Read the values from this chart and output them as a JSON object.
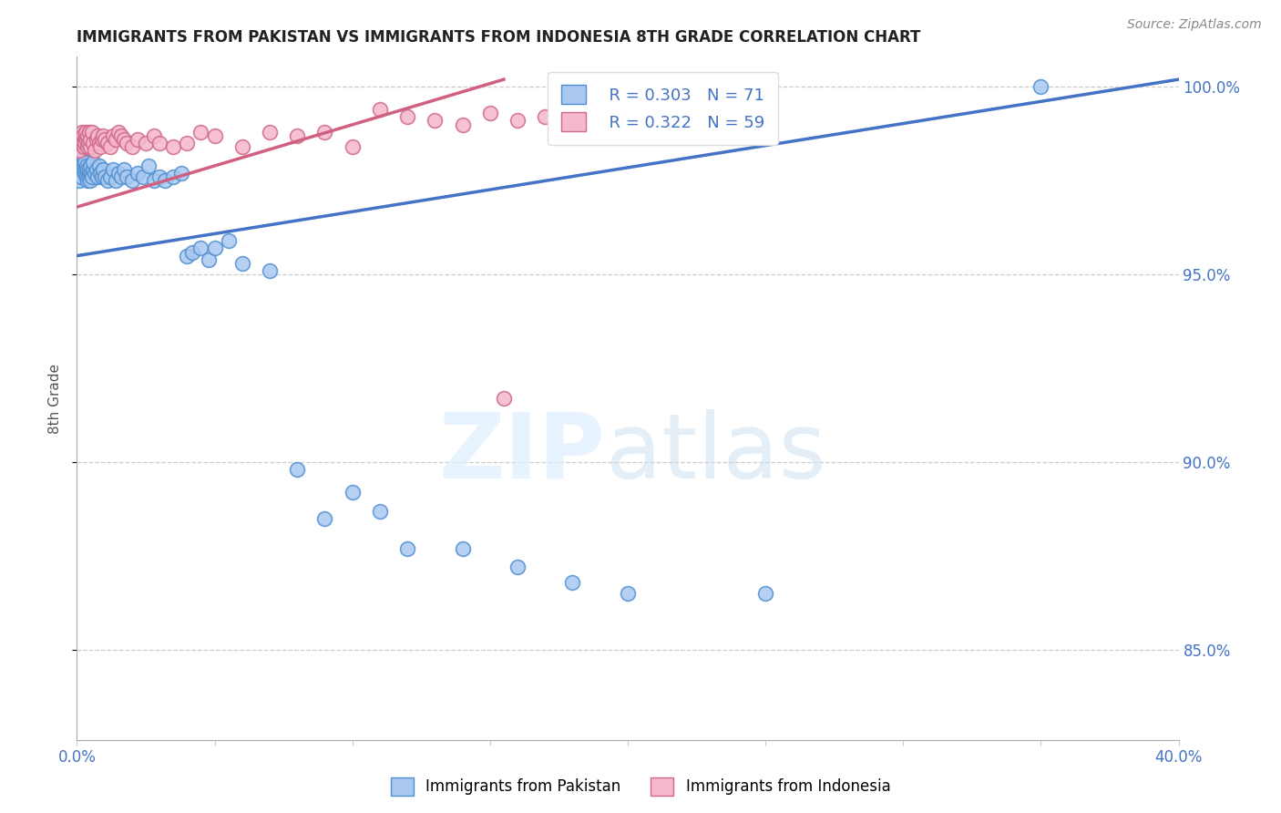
{
  "title": "IMMIGRANTS FROM PAKISTAN VS IMMIGRANTS FROM INDONESIA 8TH GRADE CORRELATION CHART",
  "source": "Source: ZipAtlas.com",
  "ylabel": "8th Grade",
  "xlim": [
    0.0,
    0.4
  ],
  "ylim": [
    0.826,
    1.008
  ],
  "xticks": [
    0.0,
    0.05,
    0.1,
    0.15,
    0.2,
    0.25,
    0.3,
    0.35,
    0.4
  ],
  "xticklabels": [
    "0.0%",
    "",
    "",
    "",
    "",
    "",
    "",
    "",
    "40.0%"
  ],
  "yticks": [
    0.85,
    0.9,
    0.95,
    1.0
  ],
  "yticklabels": [
    "85.0%",
    "90.0%",
    "95.0%",
    "100.0%"
  ],
  "pakistan_color": "#a8c8f0",
  "pakistan_edge": "#5090d0",
  "indonesia_color": "#f5b8cc",
  "indonesia_edge": "#d06888",
  "pakistan_line_color": "#4472c4",
  "indonesia_line_color": "#d06080",
  "legend_R1": "R = 0.303",
  "legend_N1": "N = 71",
  "legend_R2": "R = 0.322",
  "legend_N2": "N = 59",
  "legend_label1": "Immigrants from Pakistan",
  "legend_label2": "Immigrants from Indonesia",
  "pak_line_x0": 0.0,
  "pak_line_y0": 0.955,
  "pak_line_x1": 0.4,
  "pak_line_y1": 1.002,
  "ind_line_x0": 0.0,
  "ind_line_y0": 0.968,
  "ind_line_x1": 0.155,
  "ind_line_y1": 1.002,
  "pakistan_x": [
    0.0008,
    0.001,
    0.0012,
    0.0014,
    0.0015,
    0.0016,
    0.0018,
    0.002,
    0.0022,
    0.0024,
    0.0026,
    0.0028,
    0.003,
    0.0032,
    0.0034,
    0.0036,
    0.0038,
    0.004,
    0.0042,
    0.0044,
    0.0046,
    0.0048,
    0.005,
    0.0052,
    0.0055,
    0.0058,
    0.006,
    0.0065,
    0.007,
    0.0075,
    0.008,
    0.0085,
    0.009,
    0.0095,
    0.01,
    0.011,
    0.012,
    0.013,
    0.014,
    0.015,
    0.016,
    0.017,
    0.018,
    0.02,
    0.022,
    0.024,
    0.026,
    0.028,
    0.03,
    0.032,
    0.035,
    0.038,
    0.04,
    0.042,
    0.045,
    0.048,
    0.05,
    0.055,
    0.06,
    0.07,
    0.08,
    0.09,
    0.1,
    0.11,
    0.12,
    0.14,
    0.16,
    0.18,
    0.2,
    0.25,
    0.35
  ],
  "pakistan_y": [
    0.982,
    0.975,
    0.978,
    0.976,
    0.981,
    0.98,
    0.979,
    0.982,
    0.978,
    0.981,
    0.979,
    0.98,
    0.977,
    0.978,
    0.976,
    0.979,
    0.978,
    0.975,
    0.976,
    0.977,
    0.978,
    0.979,
    0.975,
    0.977,
    0.976,
    0.978,
    0.98,
    0.977,
    0.978,
    0.976,
    0.979,
    0.977,
    0.976,
    0.978,
    0.976,
    0.975,
    0.976,
    0.978,
    0.975,
    0.977,
    0.976,
    0.978,
    0.976,
    0.975,
    0.977,
    0.976,
    0.979,
    0.975,
    0.976,
    0.975,
    0.976,
    0.977,
    0.955,
    0.956,
    0.957,
    0.954,
    0.957,
    0.959,
    0.953,
    0.951,
    0.898,
    0.885,
    0.892,
    0.887,
    0.877,
    0.877,
    0.872,
    0.868,
    0.865,
    0.865,
    1.0
  ],
  "indonesia_x": [
    0.0008,
    0.001,
    0.0012,
    0.0015,
    0.0018,
    0.002,
    0.0022,
    0.0025,
    0.0028,
    0.003,
    0.0032,
    0.0035,
    0.0038,
    0.004,
    0.0042,
    0.0045,
    0.0048,
    0.005,
    0.0055,
    0.006,
    0.0065,
    0.007,
    0.0075,
    0.008,
    0.0085,
    0.009,
    0.0095,
    0.01,
    0.011,
    0.012,
    0.013,
    0.014,
    0.015,
    0.016,
    0.017,
    0.018,
    0.02,
    0.022,
    0.025,
    0.028,
    0.03,
    0.035,
    0.04,
    0.045,
    0.05,
    0.06,
    0.07,
    0.08,
    0.09,
    0.1,
    0.11,
    0.12,
    0.13,
    0.14,
    0.15,
    0.16,
    0.17,
    0.18,
    0.155
  ],
  "indonesia_y": [
    0.986,
    0.983,
    0.987,
    0.985,
    0.988,
    0.986,
    0.987,
    0.984,
    0.986,
    0.985,
    0.988,
    0.986,
    0.984,
    0.987,
    0.985,
    0.988,
    0.984,
    0.986,
    0.988,
    0.985,
    0.983,
    0.986,
    0.987,
    0.985,
    0.984,
    0.986,
    0.987,
    0.986,
    0.985,
    0.984,
    0.987,
    0.986,
    0.988,
    0.987,
    0.986,
    0.985,
    0.984,
    0.986,
    0.985,
    0.987,
    0.985,
    0.984,
    0.985,
    0.988,
    0.987,
    0.984,
    0.988,
    0.987,
    0.988,
    0.984,
    0.994,
    0.992,
    0.991,
    0.99,
    0.993,
    0.991,
    0.992,
    0.994,
    0.917
  ]
}
